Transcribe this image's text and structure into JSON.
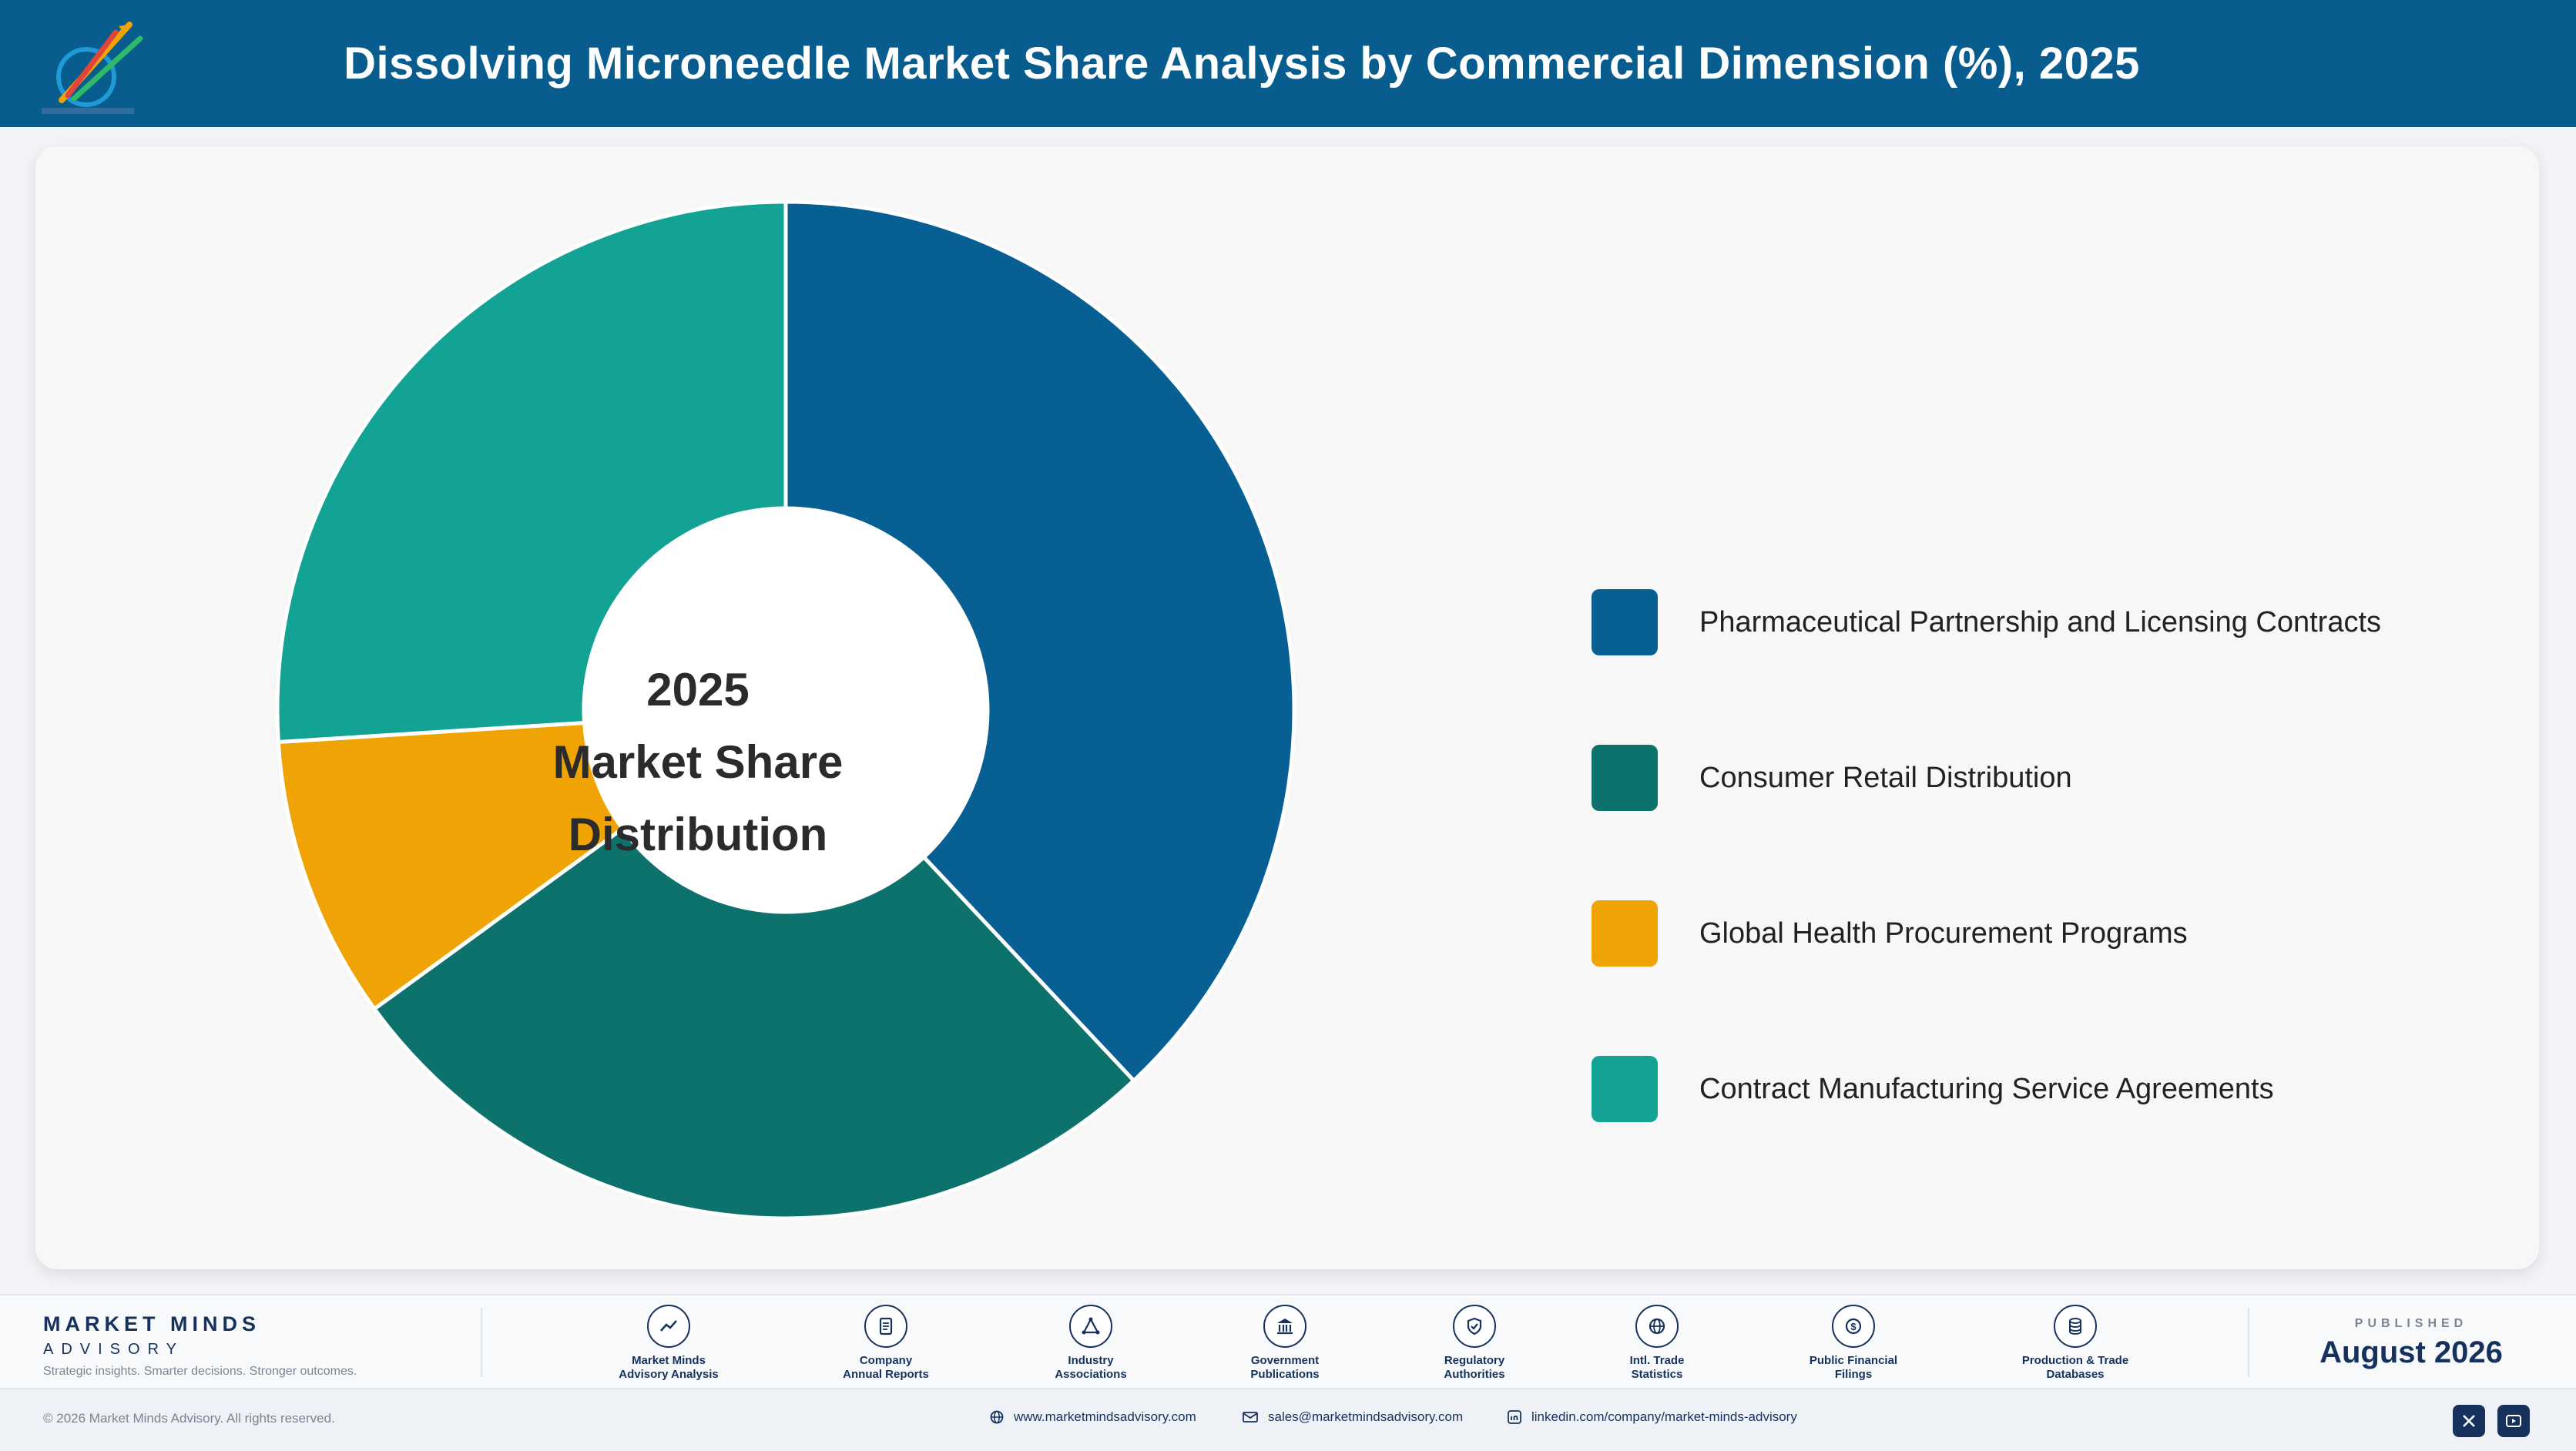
{
  "header": {
    "title": "Dissolving Microneedle Market Share Analysis by Commercial Dimension (%), 2025",
    "logo_icon": "market-minds-logo-icon"
  },
  "chart_data": {
    "type": "pie",
    "categories": [
      "Pharmaceutical Partnership and Licensing Contracts",
      "Consumer Retail Distribution",
      "Global Health Procurement Programs",
      "Contract Manufacturing Service Agreements"
    ],
    "values": [
      38,
      27,
      9,
      26
    ],
    "colors": [
      "#085f93",
      "#0d716c",
      "#f0a304",
      "#13a394"
    ],
    "center_label": [
      "2025",
      "Market Share",
      "Distribution"
    ],
    "legend_placement": "right",
    "donut": true
  },
  "footer": {
    "brand_name": "MARKET MINDS",
    "brand_sub": "ADVISORY",
    "brand_tagline": "Strategic insights. Smarter decisions. Stronger outcomes.",
    "sources": [
      {
        "label": "Market Minds\nAdvisory Analysis",
        "icon": "trend-line-icon"
      },
      {
        "label": "Company\nAnnual Reports",
        "icon": "document-icon"
      },
      {
        "label": "Industry\nAssociations",
        "icon": "network-icon"
      },
      {
        "label": "Government\nPublications",
        "icon": "government-building-icon"
      },
      {
        "label": "Regulatory\nAuthorities",
        "icon": "shield-check-icon"
      },
      {
        "label": "Intl. Trade\nStatistics",
        "icon": "globe-icon"
      },
      {
        "label": "Public Financial\nFilings",
        "icon": "dollar-circle-icon"
      },
      {
        "label": "Production & Trade\nDatabases",
        "icon": "database-icon"
      }
    ],
    "published_label": "PUBLISHED",
    "published_date": "August 2026"
  },
  "bottom": {
    "copyright": "© 2026 Market Minds Advisory. All rights reserved.",
    "website": "www.marketmindsadvisory.com",
    "email": "sales@marketmindsadvisory.com",
    "linkedin": "linkedin.com/company/market-minds-advisory"
  }
}
